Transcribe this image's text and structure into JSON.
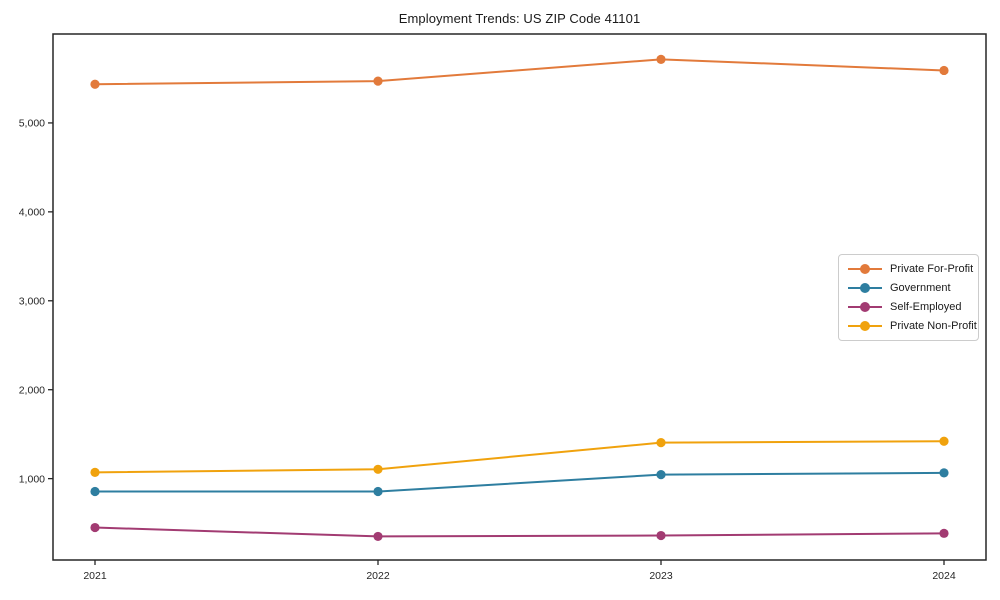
{
  "title": "Employment Trends: US ZIP Code 41101",
  "chart_data": {
    "type": "line",
    "title": "Employment Trends: US ZIP Code 41101",
    "xlabel": "",
    "ylabel": "",
    "categories": [
      "2021",
      "2022",
      "2023",
      "2024"
    ],
    "x": [
      2021,
      2022,
      2023,
      2024
    ],
    "series": [
      {
        "name": "Private For-Profit",
        "color": "#E27A3B",
        "values": [
          5435,
          5470,
          5715,
          5590
        ]
      },
      {
        "name": "Government",
        "color": "#2E7EA0",
        "values": [
          855,
          855,
          1045,
          1065
        ]
      },
      {
        "name": "Self-Employed",
        "color": "#A23B72",
        "values": [
          450,
          350,
          360,
          385
        ]
      },
      {
        "name": "Private Non-Profit",
        "color": "#F0A20D",
        "values": [
          1070,
          1105,
          1405,
          1420
        ]
      }
    ],
    "ylim": [
      85,
      6000
    ],
    "yticks": [
      1000,
      2000,
      3000,
      4000,
      5000
    ],
    "ytick_labels": [
      "1,000",
      "2,000",
      "3,000",
      "4,000",
      "5,000"
    ],
    "grid": false,
    "legend_position": "center-right",
    "marker": "circle",
    "axis_color": "#262626",
    "tick_label_color": "#262626",
    "background": "#ffffff"
  }
}
